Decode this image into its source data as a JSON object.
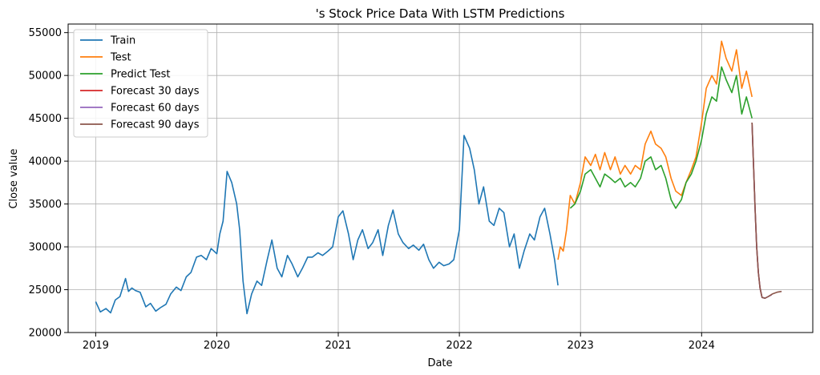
{
  "chart_data": {
    "type": "line",
    "title": "'s Stock Price Data With LSTM Predictions",
    "xlabel": "Date",
    "ylabel": "Close value",
    "xlim": [
      "2018-10-10",
      "2024-12-01"
    ],
    "ylim": [
      20000,
      56000
    ],
    "x_ticks": [
      "2019-01-01",
      "2020-01-01",
      "2021-01-01",
      "2022-01-01",
      "2023-01-01",
      "2024-01-01"
    ],
    "x_tick_labels": [
      "2019",
      "2020",
      "2021",
      "2022",
      "2023",
      "2024"
    ],
    "y_ticks": [
      20000,
      25000,
      30000,
      35000,
      40000,
      45000,
      50000,
      55000
    ],
    "y_tick_labels": [
      "20000",
      "25000",
      "30000",
      "35000",
      "40000",
      "45000",
      "50000",
      "55000"
    ],
    "grid": true,
    "legend_position": "top-left",
    "series": [
      {
        "name": "Train",
        "color": "#1f77b4",
        "x": [
          "2019-01-01",
          "2019-01-15",
          "2019-02-01",
          "2019-02-15",
          "2019-03-01",
          "2019-03-15",
          "2019-04-01",
          "2019-04-10",
          "2019-04-20",
          "2019-05-01",
          "2019-05-15",
          "2019-06-01",
          "2019-06-15",
          "2019-07-01",
          "2019-07-15",
          "2019-08-01",
          "2019-08-15",
          "2019-09-01",
          "2019-09-15",
          "2019-10-01",
          "2019-10-15",
          "2019-11-01",
          "2019-11-15",
          "2019-12-01",
          "2019-12-15",
          "2020-01-01",
          "2020-01-10",
          "2020-01-20",
          "2020-02-01",
          "2020-02-15",
          "2020-03-01",
          "2020-03-10",
          "2020-03-20",
          "2020-04-01",
          "2020-04-15",
          "2020-05-01",
          "2020-05-15",
          "2020-06-01",
          "2020-06-15",
          "2020-07-01",
          "2020-07-15",
          "2020-08-01",
          "2020-08-15",
          "2020-09-01",
          "2020-09-15",
          "2020-10-01",
          "2020-10-15",
          "2020-11-01",
          "2020-11-15",
          "2020-12-01",
          "2020-12-15",
          "2021-01-01",
          "2021-01-15",
          "2021-02-01",
          "2021-02-15",
          "2021-03-01",
          "2021-03-15",
          "2021-04-01",
          "2021-04-15",
          "2021-05-01",
          "2021-05-15",
          "2021-06-01",
          "2021-06-15",
          "2021-07-01",
          "2021-07-15",
          "2021-08-01",
          "2021-08-15",
          "2021-09-01",
          "2021-09-15",
          "2021-10-01",
          "2021-10-15",
          "2021-11-01",
          "2021-11-15",
          "2021-12-01",
          "2021-12-15",
          "2022-01-01",
          "2022-01-15",
          "2022-02-01",
          "2022-02-15",
          "2022-03-01",
          "2022-03-15",
          "2022-04-01",
          "2022-04-15",
          "2022-05-01",
          "2022-05-15",
          "2022-06-01",
          "2022-06-15",
          "2022-07-01",
          "2022-07-15",
          "2022-08-01",
          "2022-08-15",
          "2022-09-01",
          "2022-09-15",
          "2022-10-01",
          "2022-10-15",
          "2022-10-25"
        ],
        "values": [
          23600,
          22400,
          22800,
          22300,
          23800,
          24200,
          26300,
          24800,
          25200,
          24900,
          24700,
          23000,
          23400,
          22500,
          22900,
          23300,
          24500,
          25300,
          24900,
          26500,
          27000,
          28800,
          29000,
          28500,
          29800,
          29200,
          31500,
          33000,
          38800,
          37500,
          35000,
          32000,
          26000,
          22200,
          24500,
          26000,
          25500,
          28500,
          30800,
          27500,
          26500,
          29000,
          28000,
          26500,
          27500,
          28800,
          28800,
          29300,
          29000,
          29500,
          30000,
          33500,
          34200,
          31500,
          28500,
          30800,
          32000,
          29800,
          30500,
          32000,
          29000,
          32500,
          34300,
          31500,
          30500,
          29800,
          30200,
          29600,
          30300,
          28500,
          27500,
          28200,
          27800,
          28000,
          28500,
          32000,
          43000,
          41500,
          39000,
          35000,
          37000,
          33000,
          32500,
          34500,
          34000,
          30000,
          31500,
          27500,
          29500,
          31500,
          30800,
          33500,
          34500,
          31500,
          28500,
          25500
        ]
      },
      {
        "name": "Test",
        "color": "#ff7f0e",
        "x": [
          "2022-10-25",
          "2022-11-01",
          "2022-11-10",
          "2022-11-20",
          "2022-12-01",
          "2022-12-15",
          "2023-01-01",
          "2023-01-15",
          "2023-02-01",
          "2023-02-15",
          "2023-03-01",
          "2023-03-15",
          "2023-04-01",
          "2023-04-15",
          "2023-05-01",
          "2023-05-15",
          "2023-06-01",
          "2023-06-15",
          "2023-07-01",
          "2023-07-15",
          "2023-08-01",
          "2023-08-15",
          "2023-09-01",
          "2023-09-15",
          "2023-10-01",
          "2023-10-15",
          "2023-11-01",
          "2023-11-15",
          "2023-12-01",
          "2023-12-15",
          "2024-01-01",
          "2024-01-15",
          "2024-02-01",
          "2024-02-15",
          "2024-03-01",
          "2024-03-15",
          "2024-04-01",
          "2024-04-15",
          "2024-05-01",
          "2024-05-15",
          "2024-06-01"
        ],
        "values": [
          28500,
          30000,
          29500,
          32000,
          36000,
          35000,
          37500,
          40500,
          39500,
          40800,
          39000,
          41000,
          39000,
          40500,
          38500,
          39500,
          38500,
          39500,
          39000,
          42000,
          43500,
          42000,
          41500,
          40500,
          38000,
          36500,
          36000,
          37500,
          39000,
          40500,
          44500,
          48500,
          50000,
          49000,
          54000,
          52000,
          50500,
          53000,
          48500,
          50500,
          47500
        ]
      },
      {
        "name": "Predict Test",
        "color": "#2ca02c",
        "x": [
          "2022-12-01",
          "2022-12-15",
          "2023-01-01",
          "2023-01-15",
          "2023-02-01",
          "2023-02-15",
          "2023-03-01",
          "2023-03-15",
          "2023-04-01",
          "2023-04-15",
          "2023-05-01",
          "2023-05-15",
          "2023-06-01",
          "2023-06-15",
          "2023-07-01",
          "2023-07-15",
          "2023-08-01",
          "2023-08-15",
          "2023-09-01",
          "2023-09-15",
          "2023-10-01",
          "2023-10-15",
          "2023-11-01",
          "2023-11-15",
          "2023-12-01",
          "2023-12-15",
          "2024-01-01",
          "2024-01-15",
          "2024-02-01",
          "2024-02-15",
          "2024-03-01",
          "2024-03-15",
          "2024-04-01",
          "2024-04-15",
          "2024-05-01",
          "2024-05-15",
          "2024-06-01"
        ],
        "values": [
          34500,
          35000,
          36500,
          38500,
          39000,
          38000,
          37000,
          38500,
          38000,
          37500,
          38000,
          37000,
          37500,
          37000,
          38000,
          40000,
          40500,
          39000,
          39500,
          38000,
          35500,
          34500,
          35500,
          37500,
          38500,
          40000,
          42500,
          45500,
          47500,
          47000,
          51000,
          49500,
          48000,
          50000,
          45500,
          47500,
          45000
        ]
      },
      {
        "name": "Forecast 30 days",
        "color": "#d62728",
        "x": [
          "2024-06-01",
          "2024-06-05",
          "2024-06-10",
          "2024-06-15",
          "2024-06-20",
          "2024-06-25",
          "2024-06-30"
        ],
        "values": [
          44500,
          40000,
          34500,
          30000,
          27000,
          25200,
          24300
        ]
      },
      {
        "name": "Forecast 60 days",
        "color": "#9467bd",
        "x": [
          "2024-06-01",
          "2024-06-05",
          "2024-06-10",
          "2024-06-15",
          "2024-06-20",
          "2024-06-25",
          "2024-07-01",
          "2024-07-10",
          "2024-07-20",
          "2024-07-30"
        ],
        "values": [
          44500,
          40000,
          34500,
          30000,
          27000,
          25200,
          24100,
          24000,
          24200,
          24400
        ]
      },
      {
        "name": "Forecast 90 days",
        "color": "#8c564b",
        "x": [
          "2024-06-01",
          "2024-06-05",
          "2024-06-10",
          "2024-06-15",
          "2024-06-20",
          "2024-06-25",
          "2024-07-01",
          "2024-07-10",
          "2024-07-20",
          "2024-08-01",
          "2024-08-15",
          "2024-08-29"
        ],
        "values": [
          44500,
          40000,
          34500,
          30000,
          27000,
          25200,
          24100,
          24000,
          24200,
          24500,
          24700,
          24800
        ]
      }
    ]
  }
}
